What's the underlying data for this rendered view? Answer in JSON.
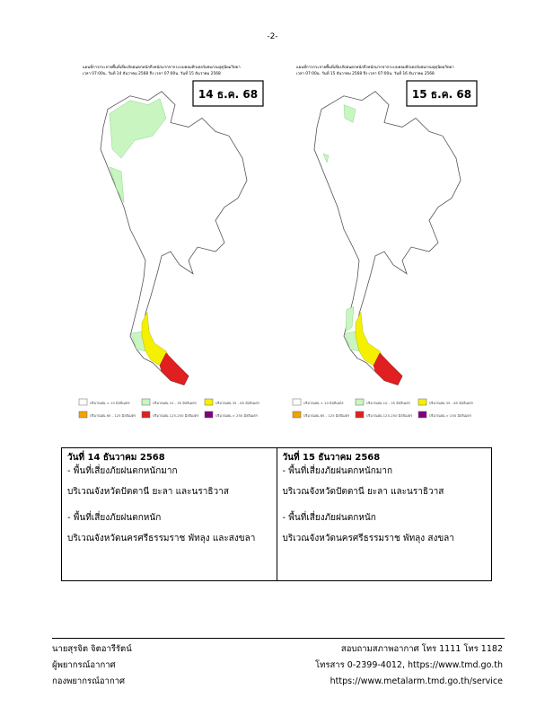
{
  "page_number": "-2-",
  "maps": [
    {
      "title": "แผนที่การกระจายพื้นที่เสี่ยงภัยฝนตกหนักถึงหนักมากจากระบบคอมพิวเตอร์ผสมกรมอุตุนิยมวิทยา",
      "period": "เวลา 07:00น. วันที่ 14 ธันวาคม 2568 ถึง เวลา 07:00น. วันที่ 15 ธันวาคม 2568",
      "date_label": "14 ธ.ค. 68"
    },
    {
      "title": "แผนที่การกระจายพื้นที่เสี่ยงภัยฝนตกหนักถึงหนักมากจากระบบคอมพิวเตอร์ผสมกรมอุตุนิยมวิทยา",
      "period": "เวลา 07:00น. วันที่ 15 ธันวาคม 2568 ถึง เวลา 07:00น. วันที่ 16 ธันวาคม 2568",
      "date_label": "15 ธ.ค. 68"
    }
  ],
  "legend": [
    {
      "label": "ปริมาณฝน < 10 มิลลิเมตร",
      "color": "#ffffff"
    },
    {
      "label": "ปริมาณฝน 10 - 35 มิลลิเมตร",
      "color": "#c8f5c0"
    },
    {
      "label": "ปริมาณฝน 35 - 65 มิลลิเมตร",
      "color": "#f5f000"
    },
    {
      "label": "ปริมาณฝน 65 - 125 มิลลิเมตร",
      "color": "#f5a000"
    },
    {
      "label": "ปริมาณฝน 125-250 มิลลิเมตร",
      "color": "#e02020"
    },
    {
      "label": "ปริมาณฝน > 250 มิลลิเมตร",
      "color": "#800080"
    }
  ],
  "table": {
    "columns": [
      {
        "heading": "วันที่ 14 ธันวาคม 2568",
        "items": [
          {
            "label": "- พื้นที่เสี่ยงภัยฝนตกหนักมาก",
            "area": "บริเวณจังหวัดปัตตานี ยะลา และนราธิวาส"
          },
          {
            "label": "- พื้นที่เสี่ยงภัยฝนตกหนัก",
            "area": "บริเวณจังหวัดนครศรีธรรมราช พัทลุง และสงขลา"
          }
        ]
      },
      {
        "heading": "วันที่ 15 ธันวาคม 2568",
        "items": [
          {
            "label": "- พื้นที่เสี่ยงภัยฝนตกหนักมาก",
            "area": "บริเวณจังหวัดปัตตานี ยะลา และนราธิวาส"
          },
          {
            "label": "- พื้นที่เสี่ยงภัยฝนตกหนัก",
            "area": "บริเวณจังหวัดนครศรีธรรมราช พัทลุง สงขลา"
          }
        ]
      }
    ]
  },
  "footer": {
    "left": [
      "นายสุรจิต จิตอารีรัตน์",
      "ผู้พยากรณ์อากาศ",
      "กองพยากรณ์อากาศ"
    ],
    "right": [
      "สอบถามสภาพอากาศ โทร 1111 โทร 1182",
      "โทรสาร 0-2399-4012, https://www.tmd.go.th",
      "https://www.metalarm.tmd.go.th/service"
    ]
  }
}
